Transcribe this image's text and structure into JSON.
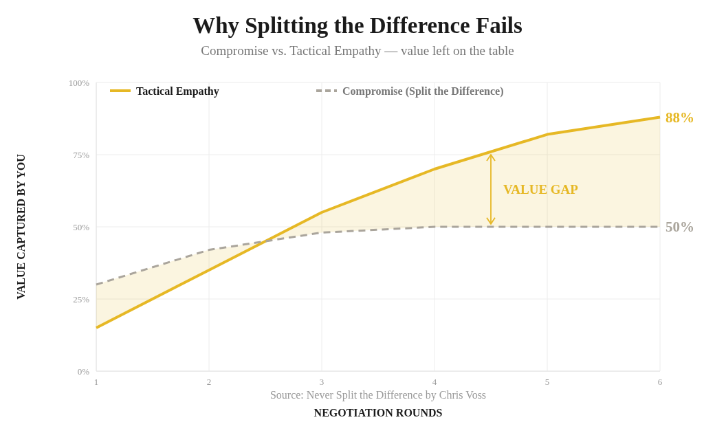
{
  "chart_data": {
    "type": "line",
    "title": "Why Splitting the Difference Fails",
    "subtitle": "Compromise vs. Tactical Empathy — value left on the table",
    "xlabel": "NEGOTIATION ROUNDS",
    "ylabel": "VALUE CAPTURED BY YOU",
    "x": [
      1,
      2,
      3,
      4,
      5,
      6
    ],
    "series": [
      {
        "name": "Tactical Empathy",
        "color": "#e6b825",
        "values": [
          15,
          35,
          55,
          70,
          82,
          88
        ],
        "lower": [
          30,
          42,
          48,
          50,
          50,
          50
        ],
        "upper": [
          15,
          35,
          55,
          70,
          82,
          88
        ],
        "line_style": "solid",
        "value_labels": [
          null,
          null,
          null,
          null,
          null,
          "88%"
        ]
      },
      {
        "name": "Compromise (Split the Difference)",
        "color": "#aaa59c",
        "values": [
          30,
          42,
          48,
          50,
          50,
          50
        ],
        "line_style": "dashed",
        "value_labels": [
          null,
          null,
          null,
          null,
          null,
          "50%"
        ]
      }
    ],
    "xlim": [
      1,
      6
    ],
    "xticks": [
      1,
      2,
      3,
      4,
      5,
      6
    ],
    "ylim": [
      0,
      100
    ],
    "yticks": [
      {
        "value": 0,
        "label": "0%"
      },
      {
        "value": 25,
        "label": "25%"
      },
      {
        "value": 50,
        "label": "50%"
      },
      {
        "value": 75,
        "label": "75%"
      },
      {
        "value": 100,
        "label": "100%"
      }
    ],
    "grid": true,
    "legend": "top left",
    "marker": "none",
    "annotations": [
      "VALUE GAP",
      "Source: Never Split the Difference by Chris Voss"
    ]
  }
}
